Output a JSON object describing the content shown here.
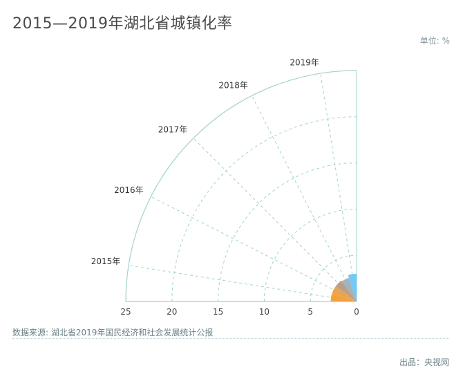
{
  "header": {
    "title": "2015—2019年湖北省城镇化率",
    "unit": "单位: %"
  },
  "footer": {
    "source": "数据来源: 湖北省2019年国民经济和社会发展统计公报",
    "credit": "出品：央视网"
  },
  "chart_data": {
    "type": "polar-bar",
    "categories": [
      "2015年",
      "2016年",
      "2017年",
      "2018年",
      "2019年"
    ],
    "series": [
      {
        "values": [
          2.8,
          2.8,
          2.8,
          2.7,
          3.0
        ]
      }
    ],
    "radial_axis": {
      "min": 0,
      "max": 25,
      "ticks": [
        25,
        20,
        15,
        10,
        5,
        0
      ]
    },
    "angle_span": "quarter circle, 0° to 90°",
    "colors": [
      "#f39c32",
      "#e8a04a",
      "#b79a84",
      "#9fb0b8",
      "#6cc6f5"
    ],
    "grid": true,
    "grid_color": "#9fd3cf"
  }
}
